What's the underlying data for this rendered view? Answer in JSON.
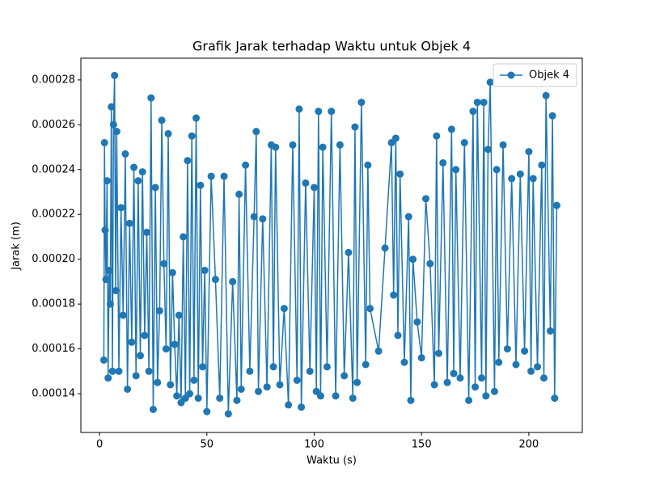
{
  "chart_data": {
    "type": "line",
    "title": "Grafik Jarak terhadap Waktu untuk Objek 4",
    "xlabel": "Waktu (s)",
    "ylabel": "Jarak (m)",
    "xlim": [
      -8.7,
      224.9
    ],
    "xticks": [
      0,
      50,
      100,
      150,
      200
    ],
    "ylim": [
      0.0001227,
      0.0002897
    ],
    "yticks": [
      0.00014,
      0.00016,
      0.00018,
      {
        "value": 0.0002,
        "label": "0.00020"
      },
      0.00022,
      0.00024,
      0.00026,
      0.00028
    ],
    "legend": "upper right",
    "grid": false,
    "series": [
      {
        "name": "Objek 4",
        "color": "#1f77b4",
        "x": [
          2,
          2.3,
          2.6,
          3,
          3.5,
          4,
          4.5,
          5,
          5.5,
          6,
          6.5,
          7,
          7.5,
          8,
          9,
          10,
          11,
          12,
          13,
          14,
          15,
          16,
          17,
          18,
          19,
          20,
          21,
          22,
          23,
          24,
          25,
          26,
          27,
          28,
          29,
          30,
          31,
          32,
          33,
          34,
          35,
          36,
          37,
          38,
          39,
          40,
          41,
          42,
          43,
          44,
          45,
          46,
          47,
          48,
          49,
          50,
          52,
          54,
          56,
          58,
          60,
          62,
          64,
          65,
          66,
          68,
          70,
          72,
          73,
          74,
          76,
          78,
          80,
          81,
          82,
          84,
          86,
          88,
          90,
          92,
          93,
          94,
          96,
          98,
          100,
          101,
          102,
          103,
          104,
          106,
          108,
          110,
          112,
          114,
          116,
          118,
          119,
          120,
          122,
          124,
          125,
          126,
          130,
          133,
          136,
          137,
          138,
          139,
          140,
          142,
          144,
          145,
          146,
          148,
          150,
          152,
          154,
          156,
          157,
          158,
          160,
          162,
          164,
          165,
          166,
          168,
          170,
          172,
          174,
          175,
          176,
          178,
          179,
          180,
          181,
          182,
          184,
          185,
          186,
          188,
          190,
          192,
          194,
          196,
          198,
          200,
          201,
          202,
          204,
          206,
          207,
          208,
          210,
          211,
          212,
          213
        ],
        "values": [
          0.000155,
          0.000252,
          0.000213,
          0.000191,
          0.000235,
          0.000147,
          0.000195,
          0.00018,
          0.000268,
          0.00015,
          0.00026,
          0.000282,
          0.000186,
          0.000257,
          0.00015,
          0.000223,
          0.000175,
          0.000247,
          0.000142,
          0.000216,
          0.000163,
          0.000241,
          0.000148,
          0.000235,
          0.000157,
          0.000239,
          0.000166,
          0.000212,
          0.00015,
          0.000272,
          0.000133,
          0.000232,
          0.000145,
          0.000177,
          0.000262,
          0.000198,
          0.00016,
          0.000256,
          0.000144,
          0.000194,
          0.000162,
          0.000139,
          0.000175,
          0.000136,
          0.00021,
          0.000138,
          0.000244,
          0.00014,
          0.000255,
          0.000146,
          0.000263,
          0.000138,
          0.000233,
          0.000152,
          0.000195,
          0.000132,
          0.000237,
          0.000191,
          0.000138,
          0.000237,
          0.000131,
          0.00019,
          0.000137,
          0.000229,
          0.000142,
          0.000242,
          0.00015,
          0.000219,
          0.000257,
          0.000141,
          0.000218,
          0.000143,
          0.000251,
          0.000152,
          0.00025,
          0.000144,
          0.000178,
          0.000135,
          0.000251,
          0.000146,
          0.000267,
          0.000134,
          0.000234,
          0.00015,
          0.000232,
          0.000141,
          0.000266,
          0.000139,
          0.00025,
          0.000152,
          0.000266,
          0.000139,
          0.000251,
          0.000148,
          0.000203,
          0.000138,
          0.000259,
          0.000145,
          0.00027,
          0.000153,
          0.000242,
          0.000178,
          0.000159,
          0.000205,
          0.000252,
          0.000184,
          0.000254,
          0.000166,
          0.000238,
          0.000154,
          0.000219,
          0.000137,
          0.0002,
          0.000172,
          0.000156,
          0.000227,
          0.000198,
          0.000144,
          0.000255,
          0.000158,
          0.000243,
          0.000145,
          0.000258,
          0.000149,
          0.00024,
          0.000147,
          0.000252,
          0.000137,
          0.000266,
          0.000143,
          0.00027,
          0.000147,
          0.00027,
          0.000139,
          0.000249,
          0.000279,
          0.000141,
          0.00024,
          0.000154,
          0.000251,
          0.00016,
          0.000236,
          0.000153,
          0.000238,
          0.000159,
          0.000248,
          0.00015,
          0.000236,
          0.000152,
          0.000242,
          0.000147,
          0.000273,
          0.000168,
          0.000264,
          0.000138,
          0.000224
        ]
      }
    ]
  }
}
